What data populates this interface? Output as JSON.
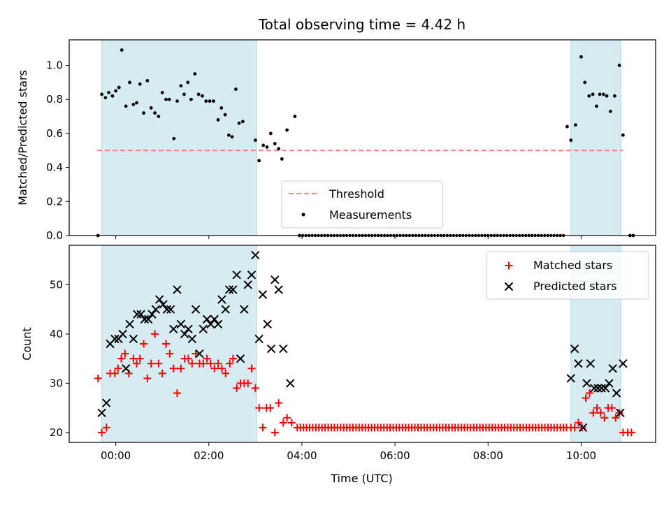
{
  "chart_data": {
    "title": "Total observing time = 4.42 h",
    "x_label": "Time (UTC)",
    "x_range_hours": [
      -1.0,
      11.6
    ],
    "x_ticks": [
      {
        "v": 0,
        "label": "00:00"
      },
      {
        "v": 2,
        "label": "02:00"
      },
      {
        "v": 4,
        "label": "04:00"
      },
      {
        "v": 6,
        "label": "06:00"
      },
      {
        "v": 8,
        "label": "08:00"
      },
      {
        "v": 10,
        "label": "10:00"
      }
    ],
    "shaded_intervals_hours": [
      [
        -0.3,
        3.03
      ],
      [
        9.78,
        10.85
      ]
    ],
    "shade_color": "#add8e6",
    "panels": [
      {
        "type": "scatter",
        "ylabel": "Matched/Predicted stars",
        "ylim": [
          0,
          1.15
        ],
        "yticks": [
          "0.0",
          "0.2",
          "0.4",
          "0.6",
          "0.8",
          "1.0"
        ],
        "threshold": {
          "name": "Threshold",
          "value": 0.5,
          "x_range": [
            -0.4,
            10.9
          ],
          "color": "#ff8080"
        },
        "measurements": {
          "name": "Measurements",
          "color": "#000000",
          "points": [
            [
              -0.38,
              0.0
            ],
            [
              -0.3,
              0.83
            ],
            [
              -0.22,
              0.81
            ],
            [
              -0.15,
              0.84
            ],
            [
              -0.07,
              0.82
            ],
            [
              0.0,
              0.85
            ],
            [
              0.07,
              0.87
            ],
            [
              0.13,
              1.09
            ],
            [
              0.22,
              0.76
            ],
            [
              0.3,
              0.9
            ],
            [
              0.38,
              0.77
            ],
            [
              0.45,
              0.78
            ],
            [
              0.52,
              0.89
            ],
            [
              0.6,
              0.72
            ],
            [
              0.68,
              0.91
            ],
            [
              0.76,
              0.75
            ],
            [
              0.84,
              0.72
            ],
            [
              0.92,
              0.7
            ],
            [
              1.0,
              0.84
            ],
            [
              1.08,
              0.8
            ],
            [
              1.15,
              0.8
            ],
            [
              1.25,
              0.57
            ],
            [
              1.32,
              0.79
            ],
            [
              1.4,
              0.88
            ],
            [
              1.47,
              0.83
            ],
            [
              1.55,
              0.9
            ],
            [
              1.62,
              0.8
            ],
            [
              1.7,
              0.95
            ],
            [
              1.78,
              0.83
            ],
            [
              1.86,
              0.82
            ],
            [
              1.94,
              0.79
            ],
            [
              2.02,
              0.79
            ],
            [
              2.1,
              0.79
            ],
            [
              2.2,
              0.68
            ],
            [
              2.27,
              0.75
            ],
            [
              2.35,
              0.71
            ],
            [
              2.43,
              0.59
            ],
            [
              2.5,
              0.58
            ],
            [
              2.58,
              0.86
            ],
            [
              2.65,
              0.66
            ],
            [
              2.73,
              0.67
            ],
            [
              3.0,
              0.56
            ],
            [
              3.08,
              0.44
            ],
            [
              3.17,
              0.53
            ],
            [
              3.25,
              0.52
            ],
            [
              3.33,
              0.6
            ],
            [
              3.42,
              0.54
            ],
            [
              3.5,
              0.51
            ],
            [
              3.57,
              0.45
            ],
            [
              3.68,
              0.62
            ],
            [
              3.85,
              0.7
            ],
            [
              3.95,
              0.0
            ],
            [
              9.7,
              0.64
            ],
            [
              9.78,
              0.56
            ],
            [
              9.88,
              0.65
            ],
            [
              10.0,
              1.05
            ],
            [
              10.08,
              0.9
            ],
            [
              10.17,
              0.82
            ],
            [
              10.25,
              0.83
            ],
            [
              10.33,
              0.76
            ],
            [
              10.4,
              0.83
            ],
            [
              10.48,
              0.83
            ],
            [
              10.55,
              0.82
            ],
            [
              10.63,
              0.73
            ],
            [
              10.72,
              0.82
            ],
            [
              10.82,
              1.0
            ],
            [
              10.9,
              0.59
            ],
            [
              11.05,
              0.0
            ],
            [
              11.12,
              0.0
            ]
          ]
        },
        "zero_run": {
          "from": 3.95,
          "to": 9.62,
          "step": 0.0675,
          "value": 0.0
        },
        "legend": {
          "position": "lower-center"
        }
      },
      {
        "type": "scatter",
        "ylabel": "Count",
        "ylim": [
          18,
          58
        ],
        "yticks": [
          "20",
          "30",
          "40",
          "50"
        ],
        "matched": {
          "name": "Matched stars",
          "color": "#ff0000",
          "marker": "+",
          "points": [
            [
              -0.38,
              31
            ],
            [
              -0.3,
              20
            ],
            [
              -0.2,
              21
            ],
            [
              -0.12,
              32
            ],
            [
              -0.02,
              32
            ],
            [
              0.05,
              33
            ],
            [
              0.12,
              35
            ],
            [
              0.2,
              36
            ],
            [
              0.28,
              32
            ],
            [
              0.38,
              35
            ],
            [
              0.45,
              34
            ],
            [
              0.52,
              35
            ],
            [
              0.6,
              38
            ],
            [
              0.68,
              31
            ],
            [
              0.76,
              34
            ],
            [
              0.84,
              40
            ],
            [
              0.92,
              34
            ],
            [
              1.0,
              32
            ],
            [
              1.08,
              38
            ],
            [
              1.16,
              36
            ],
            [
              1.24,
              33
            ],
            [
              1.32,
              28
            ],
            [
              1.4,
              33
            ],
            [
              1.48,
              35
            ],
            [
              1.56,
              35
            ],
            [
              1.64,
              34
            ],
            [
              1.72,
              36
            ],
            [
              1.8,
              34
            ],
            [
              1.88,
              34
            ],
            [
              1.96,
              35
            ],
            [
              2.04,
              34
            ],
            [
              2.12,
              33
            ],
            [
              2.2,
              34
            ],
            [
              2.28,
              33
            ],
            [
              2.36,
              32
            ],
            [
              2.45,
              34
            ],
            [
              2.52,
              35
            ],
            [
              2.6,
              29
            ],
            [
              2.68,
              30
            ],
            [
              2.76,
              30
            ],
            [
              2.84,
              30
            ],
            [
              2.92,
              33
            ],
            [
              3.0,
              29
            ],
            [
              3.08,
              25
            ],
            [
              3.16,
              21
            ],
            [
              3.24,
              25
            ],
            [
              3.32,
              25
            ],
            [
              3.42,
              20
            ],
            [
              3.5,
              26
            ],
            [
              3.6,
              22
            ],
            [
              3.68,
              23
            ],
            [
              3.78,
              22
            ]
          ],
          "tail_points": [
            [
              9.78,
              21
            ],
            [
              9.86,
              21
            ],
            [
              9.94,
              22
            ],
            [
              10.02,
              21
            ],
            [
              10.1,
              27
            ],
            [
              10.18,
              28
            ],
            [
              10.26,
              24
            ],
            [
              10.34,
              25
            ],
            [
              10.42,
              24
            ],
            [
              10.5,
              23
            ],
            [
              10.58,
              25
            ],
            [
              10.66,
              25
            ],
            [
              10.74,
              23
            ],
            [
              10.82,
              24
            ],
            [
              10.9,
              20
            ],
            [
              11.0,
              20
            ],
            [
              11.08,
              20
            ]
          ]
        },
        "matched_flat_run": {
          "from": 3.9,
          "to": 9.72,
          "step": 0.0665,
          "value": 21
        },
        "predicted": {
          "name": "Predicted stars",
          "color": "#000000",
          "marker": "x",
          "points": [
            [
              -0.3,
              24
            ],
            [
              -0.2,
              26
            ],
            [
              -0.12,
              38
            ],
            [
              -0.02,
              39
            ],
            [
              0.06,
              39
            ],
            [
              0.15,
              40
            ],
            [
              0.22,
              33
            ],
            [
              0.3,
              42
            ],
            [
              0.38,
              39
            ],
            [
              0.46,
              44
            ],
            [
              0.54,
              44
            ],
            [
              0.62,
              43
            ],
            [
              0.7,
              43
            ],
            [
              0.78,
              44
            ],
            [
              0.86,
              45
            ],
            [
              0.94,
              47
            ],
            [
              1.02,
              46
            ],
            [
              1.1,
              45
            ],
            [
              1.18,
              45
            ],
            [
              1.24,
              41
            ],
            [
              1.32,
              49
            ],
            [
              1.4,
              42
            ],
            [
              1.48,
              40
            ],
            [
              1.56,
              41
            ],
            [
              1.64,
              39
            ],
            [
              1.72,
              45
            ],
            [
              1.8,
              36
            ],
            [
              1.88,
              41
            ],
            [
              1.96,
              43
            ],
            [
              2.04,
              42
            ],
            [
              2.12,
              43
            ],
            [
              2.2,
              42
            ],
            [
              2.28,
              47
            ],
            [
              2.36,
              45
            ],
            [
              2.44,
              49
            ],
            [
              2.52,
              49
            ],
            [
              2.6,
              52
            ],
            [
              2.68,
              35
            ],
            [
              2.76,
              45
            ],
            [
              2.84,
              50
            ],
            [
              2.92,
              52
            ],
            [
              3.0,
              56
            ],
            [
              3.08,
              39
            ],
            [
              3.16,
              48
            ],
            [
              3.26,
              42
            ],
            [
              3.34,
              37
            ],
            [
              3.42,
              51
            ],
            [
              3.5,
              49
            ],
            [
              3.6,
              37
            ],
            [
              3.75,
              30
            ]
          ],
          "tail_points": [
            [
              9.78,
              31
            ],
            [
              9.86,
              37
            ],
            [
              9.94,
              34
            ],
            [
              10.04,
              21
            ],
            [
              10.12,
              30
            ],
            [
              10.2,
              34
            ],
            [
              10.28,
              29
            ],
            [
              10.36,
              29
            ],
            [
              10.44,
              29
            ],
            [
              10.52,
              29
            ],
            [
              10.6,
              30
            ],
            [
              10.68,
              33
            ],
            [
              10.76,
              28
            ],
            [
              10.84,
              24
            ],
            [
              10.9,
              34
            ]
          ]
        },
        "legend": {
          "position": "upper-right"
        }
      }
    ]
  }
}
